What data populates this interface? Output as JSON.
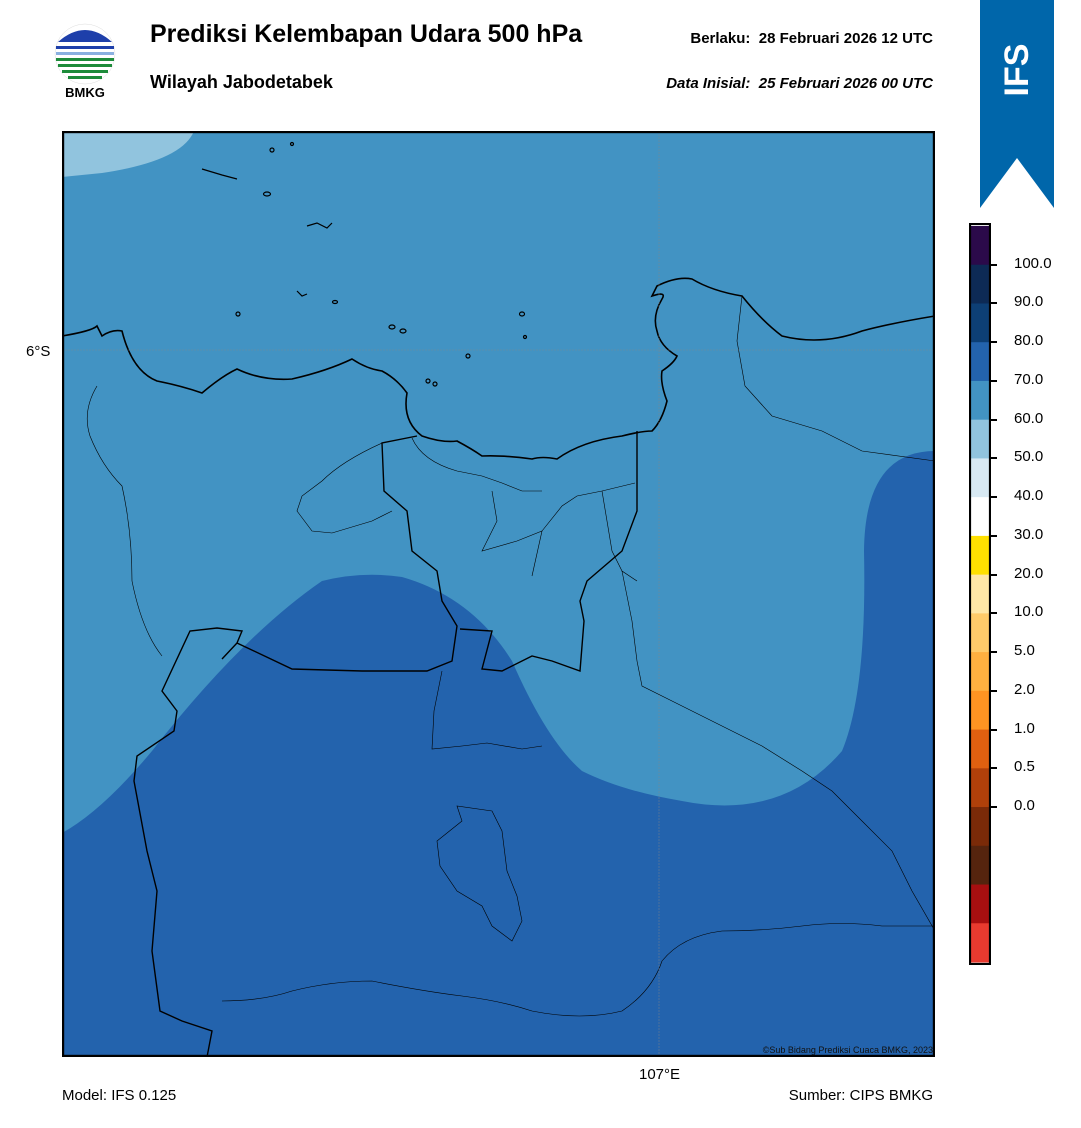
{
  "header": {
    "title": "Prediksi Kelembapan Udara 500 hPa",
    "subtitle": "Wilayah Jabodetabek",
    "valid_label": "Berlaku:",
    "valid_value": "28 Februari 2026 12 UTC",
    "init_label": "Data Inisial:",
    "init_value": "25 Februari 2026 00 UTC"
  },
  "logo": {
    "text": "BMKG",
    "icon": "bmkg-logo-icon"
  },
  "ribbon": {
    "text": "IFS",
    "color": "#0066aa"
  },
  "map": {
    "lat_label": "6°S",
    "lon_label": "107°E",
    "copyright": "©Sub Bidang Prediksi Cuaca BMKG, 2023"
  },
  "footer": {
    "model": "Model: IFS 0.125",
    "source": "Sumber: CIPS BMKG"
  },
  "colorbar": {
    "labels": [
      "100.0",
      "90.0",
      "80.0",
      "70.0",
      "60.0",
      "50.0",
      "40.0",
      "30.0",
      "20.0",
      "10.0",
      "5.0",
      "2.0",
      "1.0",
      "0.5",
      "0.0"
    ],
    "colors": [
      "#2b0a4a",
      "#0d2a55",
      "#0d3f75",
      "#2363ad",
      "#4293c3",
      "#91c4de",
      "#d8e9f3",
      "#ffffff",
      "#ffe000",
      "#ffe7a6",
      "#ffcb6a",
      "#ffb040",
      "#ff9422",
      "#e06010",
      "#b0400a",
      "#7a2a08",
      "#55240e",
      "#a80f10",
      "#e83a2f"
    ]
  },
  "fields": {
    "light_blue": "#4293c3",
    "dark_blue": "#2363ad",
    "pale_blue": "#91c4de"
  }
}
